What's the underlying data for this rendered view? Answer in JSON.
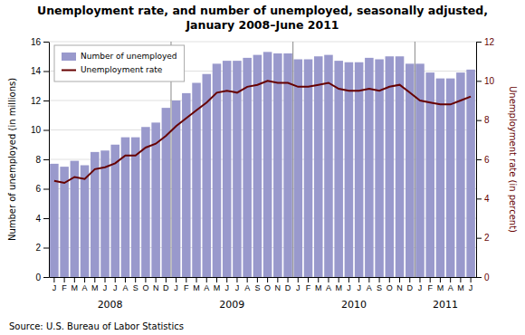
{
  "chart_data": {
    "type": "bar",
    "title": "Unemployment rate, and number of unemployed, seasonally adjusted,\nJanuary 2008–June 2011",
    "source": "Source: U.S. Bureau of Labor Statistics",
    "ylabel": "Number of unemployed (in millions)",
    "y2label": "Unemployment rate (in percent)",
    "categories": [
      "J",
      "F",
      "M",
      "A",
      "M",
      "J",
      "J",
      "A",
      "S",
      "O",
      "N",
      "D",
      "J",
      "F",
      "M",
      "A",
      "M",
      "J",
      "J",
      "A",
      "S",
      "O",
      "N",
      "D",
      "J",
      "F",
      "M",
      "A",
      "M",
      "J",
      "J",
      "A",
      "S",
      "O",
      "N",
      "D",
      "J",
      "F",
      "M",
      "A",
      "M",
      "J"
    ],
    "annotations": [
      "2008",
      "2009",
      "2010",
      "2011"
    ],
    "series": [
      {
        "name": "Number of unemployed",
        "type": "bar",
        "color": "#9999cc",
        "values": [
          7.7,
          7.5,
          7.9,
          7.6,
          8.5,
          8.6,
          9.0,
          9.5,
          9.5,
          10.2,
          10.5,
          11.5,
          12.0,
          12.5,
          13.2,
          13.8,
          14.5,
          14.7,
          14.7,
          14.9,
          15.1,
          15.3,
          15.2,
          15.2,
          14.8,
          14.8,
          15.0,
          15.1,
          14.7,
          14.6,
          14.6,
          14.9,
          14.8,
          15.0,
          15.0,
          14.5,
          14.5,
          13.9,
          13.5,
          13.5,
          13.9,
          14.1
        ]
      },
      {
        "name": "Unemployment rate",
        "type": "line",
        "color": "#660000",
        "axis": "y2",
        "values": [
          4.9,
          4.8,
          5.1,
          5.0,
          5.5,
          5.6,
          5.8,
          6.2,
          6.2,
          6.6,
          6.8,
          7.2,
          7.7,
          8.1,
          8.5,
          8.9,
          9.4,
          9.5,
          9.4,
          9.7,
          9.8,
          10.0,
          9.9,
          9.9,
          9.7,
          9.7,
          9.8,
          9.9,
          9.6,
          9.5,
          9.5,
          9.6,
          9.5,
          9.7,
          9.8,
          9.4,
          9.0,
          8.9,
          8.8,
          8.8,
          9.0,
          9.2
        ]
      }
    ],
    "ylim": [
      0,
      16
    ],
    "yticks": [
      0,
      2,
      4,
      6,
      8,
      10,
      12,
      14,
      16
    ],
    "y2lim": [
      0,
      12
    ],
    "y2ticks": [
      0,
      2,
      4,
      6,
      8,
      10,
      12
    ],
    "grid": true,
    "legend": "top-left"
  }
}
